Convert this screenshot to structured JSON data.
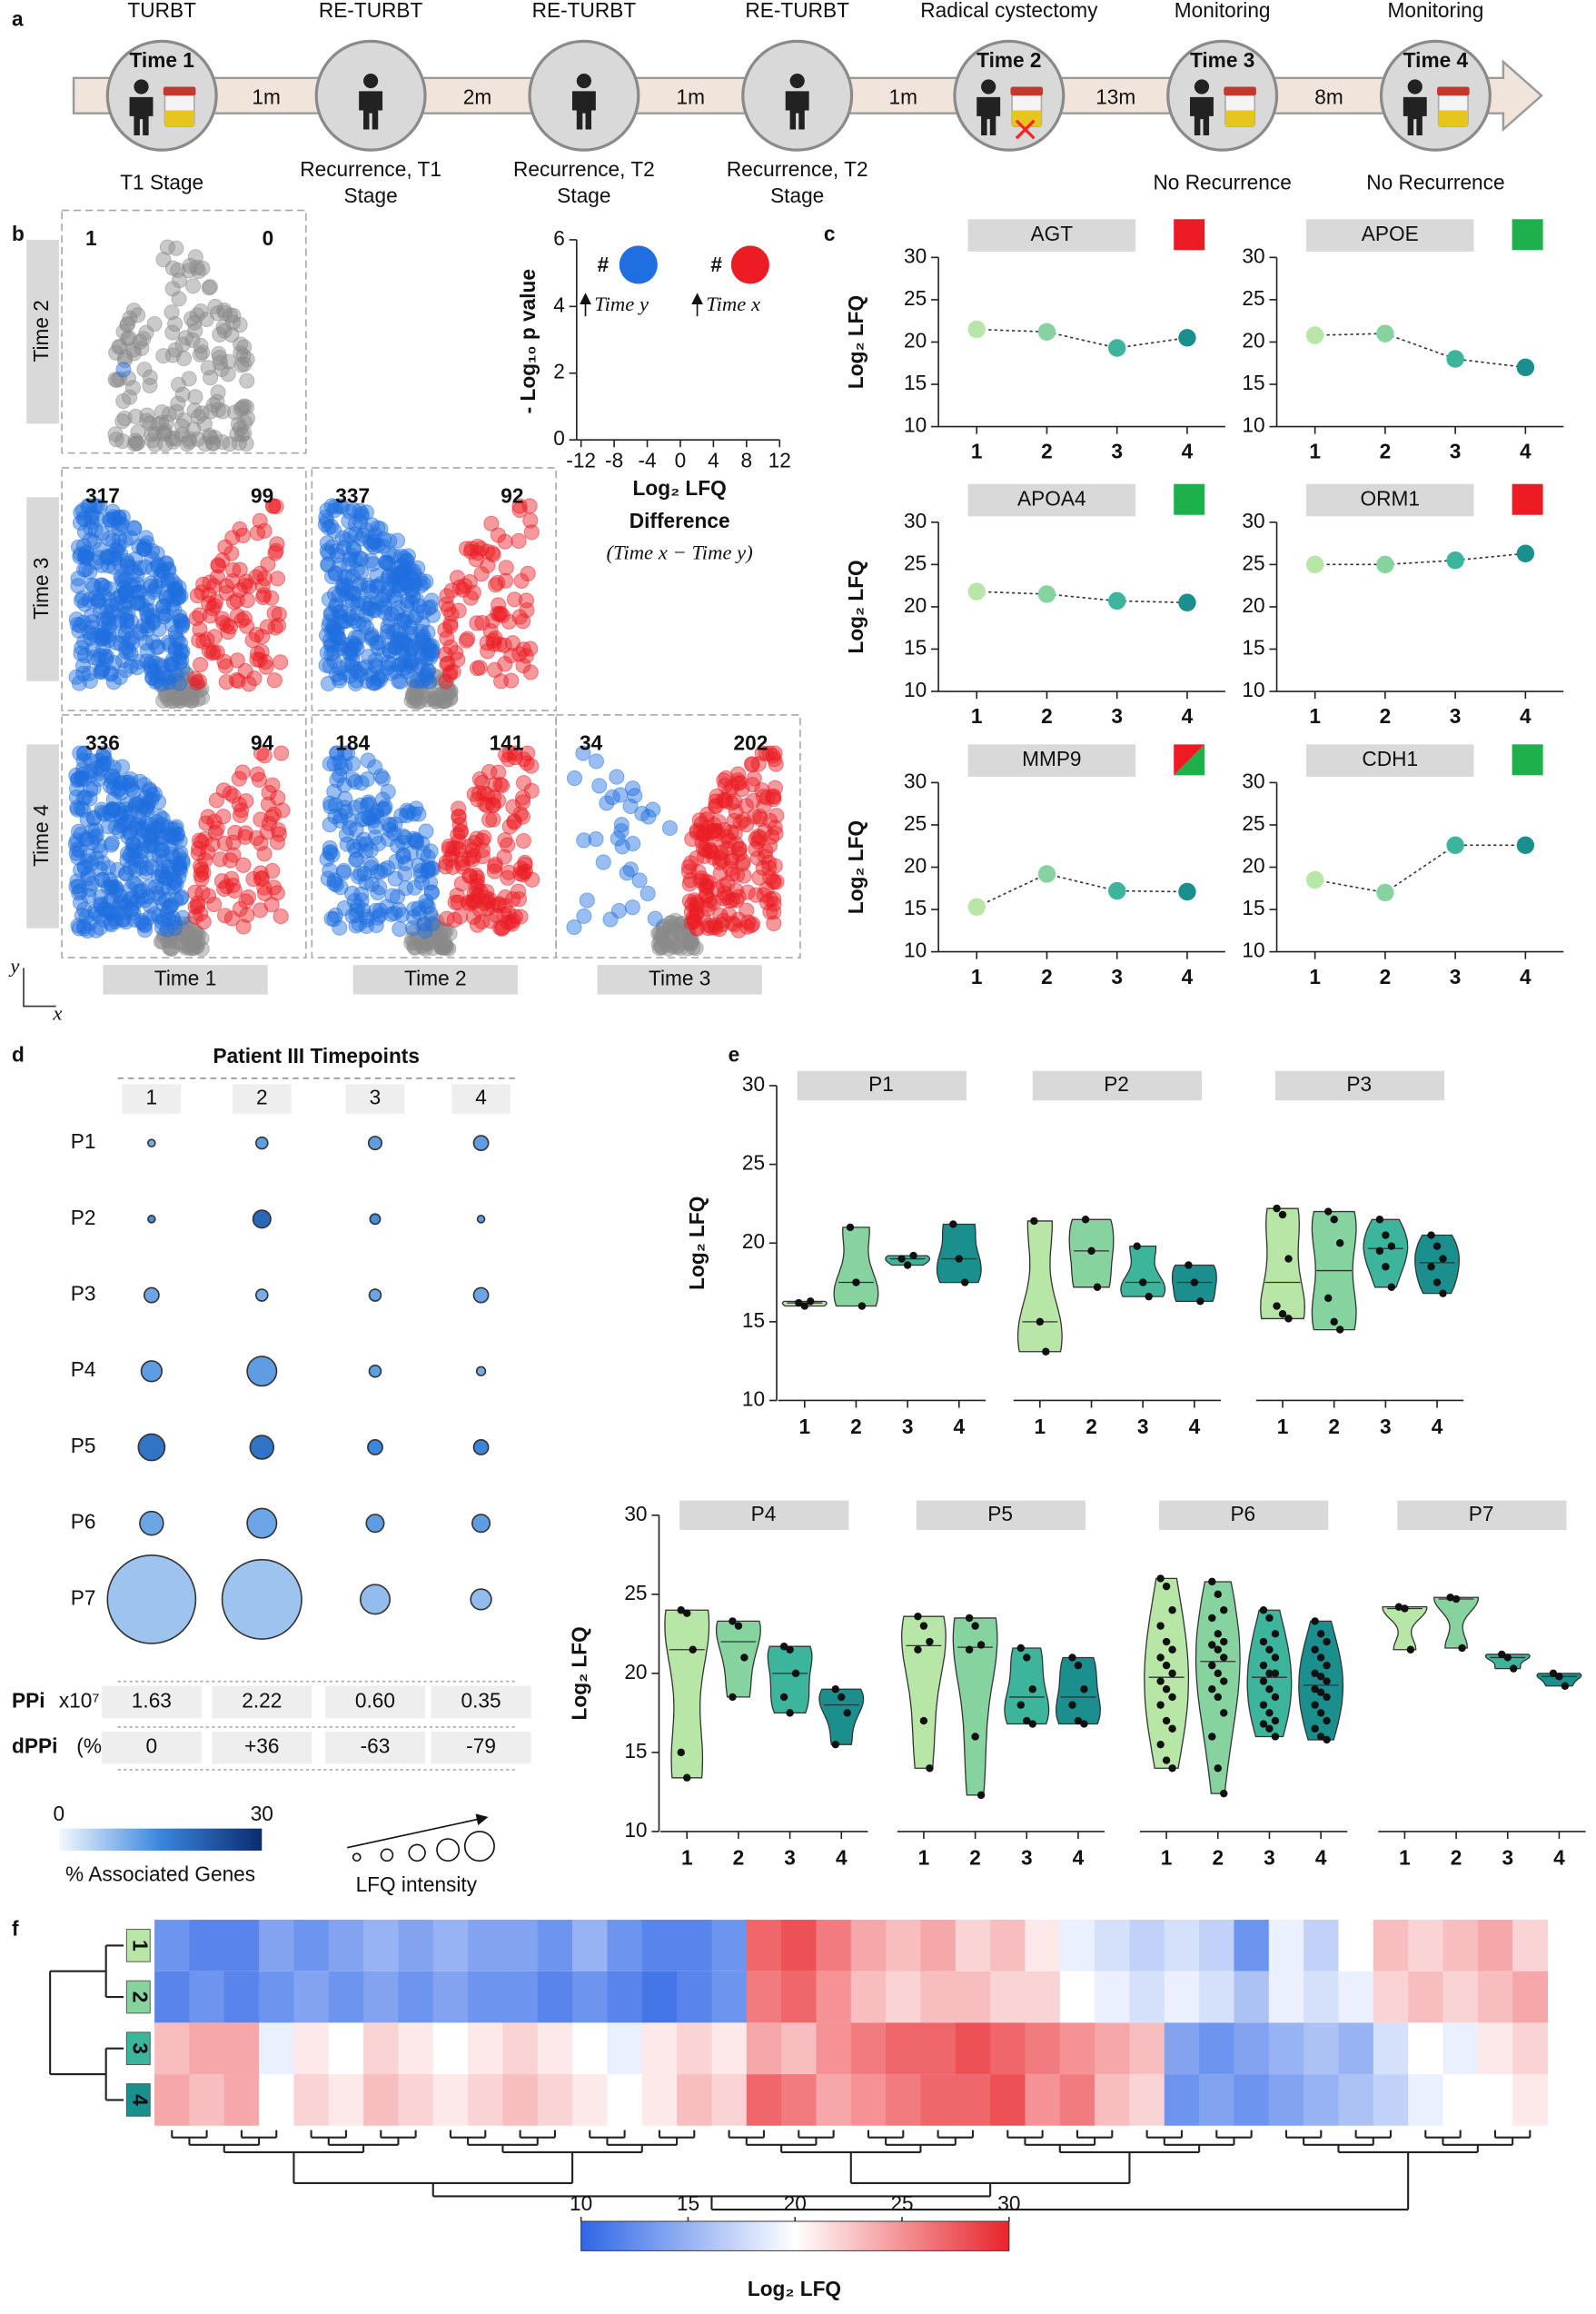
{
  "panel_labels": [
    "a",
    "b",
    "c",
    "d",
    "e",
    "f"
  ],
  "timepoint_colors": [
    "#b7e6a6",
    "#86d3a0",
    "#3cb59c",
    "#1b8f8e"
  ],
  "timeline": {
    "procedures": [
      "TURBT",
      "RE-TURBT",
      "RE-TURBT",
      "RE-TURBT",
      "Radical cystectomy",
      "Monitoring",
      "Monitoring"
    ],
    "timepoints": [
      "Time 1",
      null,
      null,
      null,
      "Time 2",
      "Time 3",
      "Time 4"
    ],
    "intervals": [
      "1m",
      "2m",
      "1m",
      "1m",
      "13m",
      "8m"
    ],
    "outcomes": [
      [
        "T1 Stage"
      ],
      [
        "Recurrence,  T1",
        "Stage"
      ],
      [
        "Recurrence,  T2",
        "Stage"
      ],
      [
        "Recurrence,  T2",
        "Stage"
      ],
      [],
      [
        "No Recurrence"
      ],
      [
        "No Recurrence"
      ]
    ]
  },
  "volcano": {
    "row_labels": [
      "Time 2",
      "Time 3",
      "Time 4"
    ],
    "column_labels": [
      "Time 1",
      "Time 2",
      "Time 3"
    ],
    "down_counts": [
      [
        1
      ],
      [
        317,
        337
      ],
      [
        336,
        184,
        34
      ]
    ],
    "up_counts": [
      [
        0
      ],
      [
        99,
        92
      ],
      [
        94,
        141,
        202
      ]
    ],
    "down_color": "#1f6fe0",
    "up_color": "#ec1c24",
    "ns_color": "#8a8a8a",
    "corner_axes": [
      "y",
      "x"
    ],
    "key": {
      "ylabel": "- Log₁₀ p value",
      "xlabel": [
        "Log₂ LFQ",
        "Difference"
      ],
      "xnote": "(Time x − Time y)",
      "ylim": [
        0,
        6
      ],
      "yticks": [
        0,
        2,
        4,
        6
      ],
      "xlim": [
        -12,
        12
      ],
      "xticks": [
        -12,
        -8,
        -4,
        0,
        4,
        8,
        12
      ],
      "count_symbol": "#",
      "down_label": "Time y",
      "up_label": "Time x"
    }
  },
  "chart_data": [
    {
      "type": "line",
      "title": "AGT",
      "ylabel": "Log₂ LFQ",
      "categories": [
        "1",
        "2",
        "3",
        "4"
      ],
      "values": [
        21.5,
        21.2,
        19.3,
        20.5
      ],
      "indicator_colors": [
        "#ec1c24"
      ],
      "ylim": [
        10,
        30
      ],
      "yticks": [
        10,
        15,
        20,
        25,
        30
      ]
    },
    {
      "type": "line",
      "title": "APOE",
      "categories": [
        "1",
        "2",
        "3",
        "4"
      ],
      "values": [
        20.8,
        21.0,
        18.0,
        17.0
      ],
      "indicator_colors": [
        "#1db04b"
      ],
      "ylim": [
        10,
        30
      ],
      "yticks": [
        10,
        15,
        20,
        25,
        30
      ]
    },
    {
      "type": "line",
      "title": "APOA4",
      "ylabel": "Log₂ LFQ",
      "categories": [
        "1",
        "2",
        "3",
        "4"
      ],
      "values": [
        21.8,
        21.5,
        20.7,
        20.5
      ],
      "indicator_colors": [
        "#1db04b"
      ],
      "ylim": [
        10,
        30
      ],
      "yticks": [
        10,
        15,
        20,
        25,
        30
      ]
    },
    {
      "type": "line",
      "title": "ORM1",
      "categories": [
        "1",
        "2",
        "3",
        "4"
      ],
      "values": [
        25.0,
        25.0,
        25.5,
        26.3
      ],
      "indicator_colors": [
        "#ec1c24"
      ],
      "ylim": [
        10,
        30
      ],
      "yticks": [
        10,
        15,
        20,
        25,
        30
      ]
    },
    {
      "type": "line",
      "title": "MMP9",
      "ylabel": "Log₂ LFQ",
      "categories": [
        "1",
        "2",
        "3",
        "4"
      ],
      "values": [
        15.3,
        19.2,
        17.2,
        17.1
      ],
      "indicator_colors": [
        "#ec1c24",
        "#1db04b"
      ],
      "ylim": [
        10,
        30
      ],
      "yticks": [
        10,
        15,
        20,
        25,
        30
      ]
    },
    {
      "type": "line",
      "title": "CDH1",
      "categories": [
        "1",
        "2",
        "3",
        "4"
      ],
      "values": [
        18.5,
        17.0,
        22.6,
        22.6
      ],
      "indicator_colors": [
        "#1db04b"
      ],
      "ylim": [
        10,
        30
      ],
      "yticks": [
        10,
        15,
        20,
        25,
        30
      ]
    },
    {
      "type": "violin",
      "title": "P1",
      "ylabel": "Log₂ LFQ",
      "ylim": [
        10,
        30
      ],
      "yticks": [
        10,
        15,
        20,
        25,
        30
      ],
      "categories": [
        "1",
        "2",
        "3",
        "4"
      ],
      "points": [
        [
          16.2,
          16.0,
          16.3
        ],
        [
          21.0,
          17.5,
          16.0
        ],
        [
          19.0,
          18.6,
          19.2
        ],
        [
          21.2,
          19.0,
          17.5
        ]
      ]
    },
    {
      "type": "violin",
      "title": "P2",
      "categories": [
        "1",
        "2",
        "3",
        "4"
      ],
      "points": [
        [
          21.4,
          15.0,
          13.1
        ],
        [
          21.5,
          19.5,
          17.2
        ],
        [
          19.8,
          17.5,
          16.6
        ],
        [
          18.6,
          17.5,
          16.3
        ]
      ]
    },
    {
      "type": "violin",
      "title": "P3",
      "categories": [
        "1",
        "2",
        "3",
        "4"
      ],
      "points": [
        [
          22.2,
          21.8,
          19.0,
          16.0,
          15.5,
          15.2
        ],
        [
          22.0,
          21.5,
          20.0,
          16.5,
          15.0,
          14.5
        ],
        [
          21.5,
          20.5,
          19.8,
          19.5,
          18.5,
          17.2
        ],
        [
          20.5,
          19.8,
          19.0,
          18.5,
          17.5,
          16.8
        ]
      ]
    },
    {
      "type": "violin",
      "title": "P4",
      "ylabel": "Log₂ LFQ",
      "ylim": [
        10,
        30
      ],
      "yticks": [
        10,
        15,
        20,
        25,
        30
      ],
      "categories": [
        "1",
        "2",
        "3",
        "4"
      ],
      "points": [
        [
          24.0,
          23.8,
          21.5,
          15.0,
          13.4
        ],
        [
          23.3,
          23.0,
          21.0,
          18.5
        ],
        [
          21.7,
          21.5,
          20.0,
          18.5,
          17.5
        ],
        [
          19.0,
          18.5,
          17.5,
          15.5
        ]
      ]
    },
    {
      "type": "violin",
      "title": "P5",
      "categories": [
        "1",
        "2",
        "3",
        "4"
      ],
      "points": [
        [
          23.6,
          23.0,
          22.0,
          21.5,
          17.0,
          14.0
        ],
        [
          23.5,
          23.0,
          21.8,
          21.5,
          16.0,
          12.3
        ],
        [
          21.6,
          21.0,
          19.0,
          18.0,
          17.0,
          16.8
        ],
        [
          21.0,
          20.5,
          19.0,
          18.0,
          17.0,
          16.8
        ]
      ]
    },
    {
      "type": "violin",
      "title": "P6",
      "categories": [
        "1",
        "2",
        "3",
        "4"
      ],
      "points": [
        [
          26.0,
          25.5,
          24.0,
          23.0,
          22.0,
          21.5,
          21.0,
          20.5,
          20.0,
          19.5,
          19.0,
          18.5,
          18.0,
          17.0,
          16.5,
          15.5,
          14.5,
          14.0
        ],
        [
          25.8,
          25.0,
          24.0,
          23.5,
          22.5,
          22.0,
          21.8,
          21.5,
          21.0,
          20.5,
          20.0,
          19.5,
          19.0,
          18.5,
          17.5,
          16.0,
          14.0,
          12.4
        ],
        [
          24.0,
          23.5,
          22.5,
          22.0,
          21.5,
          21.0,
          20.5,
          20.0,
          20.0,
          19.5,
          19.0,
          18.5,
          18.0,
          17.5,
          17.0,
          16.8,
          16.5,
          16.0
        ],
        [
          23.3,
          22.5,
          22.0,
          21.5,
          21.0,
          20.5,
          20.0,
          19.8,
          19.5,
          19.0,
          18.8,
          18.5,
          18.0,
          17.5,
          17.0,
          16.5,
          16.0,
          15.8
        ]
      ]
    },
    {
      "type": "violin",
      "title": "P7",
      "categories": [
        "1",
        "2",
        "3",
        "4"
      ],
      "points": [
        [
          24.2,
          24.1,
          21.5
        ],
        [
          24.8,
          24.7,
          21.6
        ],
        [
          21.2,
          21.0,
          20.3
        ],
        [
          20.0,
          19.8,
          19.2
        ]
      ]
    }
  ],
  "bubbles": {
    "title": "Patient III Timepoints",
    "columns": [
      "1",
      "2",
      "3",
      "4"
    ],
    "rows": [
      "P1",
      "P2",
      "P3",
      "P4",
      "P5",
      "P6",
      "P7"
    ],
    "lfq_intensity": [
      [
        6,
        16,
        20,
        25
      ],
      [
        6,
        36,
        12,
        6
      ],
      [
        25,
        16,
        16,
        25
      ],
      [
        49,
        100,
        16,
        9
      ],
      [
        81,
        64,
        25,
        25
      ],
      [
        64,
        100,
        36,
        36
      ],
      [
        900,
        729,
        100,
        49
      ]
    ],
    "associated_genes_pct": [
      [
        10,
        12,
        12,
        12
      ],
      [
        14,
        20,
        14,
        12
      ],
      [
        11,
        10,
        11,
        11
      ],
      [
        12,
        12,
        12,
        10
      ],
      [
        18,
        18,
        15,
        15
      ],
      [
        11,
        11,
        12,
        12
      ],
      [
        7,
        7,
        8,
        8
      ]
    ],
    "table": [
      {
        "label": "PPi",
        "unit": "x10⁷",
        "cells": [
          "1.63",
          "2.22",
          "0.60",
          "0.35"
        ]
      },
      {
        "label": "dPPi",
        "unit": "(%)",
        "cells": [
          "0",
          "+36",
          "-63",
          "-79"
        ]
      }
    ],
    "colorbar": {
      "label": "% Associated Genes",
      "lim": [
        0,
        30
      ],
      "ticks": [
        0,
        30
      ]
    },
    "size_legend": "LFQ intensity"
  },
  "heatmap": {
    "row_labels": [
      "1",
      "2",
      "3",
      "4"
    ],
    "values": [
      [
        13,
        12,
        12,
        14,
        13,
        14,
        15,
        14,
        15,
        14,
        14,
        13,
        15,
        13,
        12,
        12,
        13,
        27,
        28,
        26,
        24,
        23,
        24,
        22,
        23,
        21,
        19,
        18,
        17,
        18,
        17,
        13,
        19,
        17,
        20,
        23,
        22,
        23,
        24,
        22
      ],
      [
        12,
        13,
        12,
        13,
        14,
        13,
        14,
        13,
        14,
        13,
        13,
        12,
        13,
        12,
        11,
        12,
        13,
        26,
        27,
        25,
        23,
        22,
        23,
        23,
        22,
        22,
        20,
        19,
        18,
        19,
        18,
        16,
        19,
        18,
        19,
        22,
        23,
        22,
        23,
        24
      ],
      [
        23,
        24,
        24,
        19,
        21,
        20,
        22,
        21,
        20,
        21,
        22,
        21,
        20,
        19,
        21,
        22,
        21,
        24,
        23,
        25,
        26,
        27,
        27,
        28,
        27,
        26,
        25,
        24,
        23,
        14,
        13,
        14,
        15,
        16,
        15,
        18,
        20,
        19,
        21,
        22
      ],
      [
        24,
        23,
        24,
        20,
        22,
        21,
        23,
        22,
        21,
        22,
        23,
        22,
        21,
        20,
        21,
        23,
        22,
        27,
        26,
        24,
        25,
        26,
        27,
        27,
        28,
        25,
        26,
        23,
        22,
        13,
        14,
        13,
        14,
        15,
        16,
        17,
        19,
        20,
        20,
        21
      ]
    ],
    "colorbar": {
      "label": "Log₂ LFQ",
      "lim": [
        10,
        30
      ],
      "ticks": [
        10,
        15,
        20,
        25,
        30
      ]
    }
  }
}
